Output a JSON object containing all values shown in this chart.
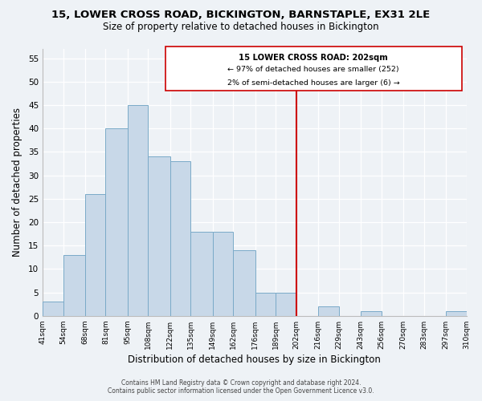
{
  "title": "15, LOWER CROSS ROAD, BICKINGTON, BARNSTAPLE, EX31 2LE",
  "subtitle": "Size of property relative to detached houses in Bickington",
  "xlabel": "Distribution of detached houses by size in Bickington",
  "ylabel": "Number of detached properties",
  "bar_edges": [
    41,
    54,
    68,
    81,
    95,
    108,
    122,
    135,
    149,
    162,
    176,
    189,
    202,
    216,
    229,
    243,
    256,
    270,
    283,
    297,
    310
  ],
  "bar_heights": [
    3,
    13,
    26,
    40,
    45,
    34,
    33,
    18,
    18,
    14,
    5,
    5,
    0,
    2,
    0,
    1,
    0,
    0,
    0,
    1
  ],
  "bar_color": "#c8d8e8",
  "bar_edgecolor": "#7aaac8",
  "vline_x": 202,
  "vline_color": "#cc0000",
  "ylim": [
    0,
    57
  ],
  "yticks": [
    0,
    5,
    10,
    15,
    20,
    25,
    30,
    35,
    40,
    45,
    50,
    55
  ],
  "annotation_title": "15 LOWER CROSS ROAD: 202sqm",
  "annotation_line1": "← 97% of detached houses are smaller (252)",
  "annotation_line2": "2% of semi-detached houses are larger (6) →",
  "footer_line1": "Contains HM Land Registry data © Crown copyright and database right 2024.",
  "footer_line2": "Contains public sector information licensed under the Open Government Licence v3.0.",
  "background_color": "#eef2f6",
  "tick_labels": [
    "41sqm",
    "54sqm",
    "68sqm",
    "81sqm",
    "95sqm",
    "108sqm",
    "122sqm",
    "135sqm",
    "149sqm",
    "162sqm",
    "176sqm",
    "189sqm",
    "202sqm",
    "216sqm",
    "229sqm",
    "243sqm",
    "256sqm",
    "270sqm",
    "283sqm",
    "297sqm",
    "310sqm"
  ]
}
